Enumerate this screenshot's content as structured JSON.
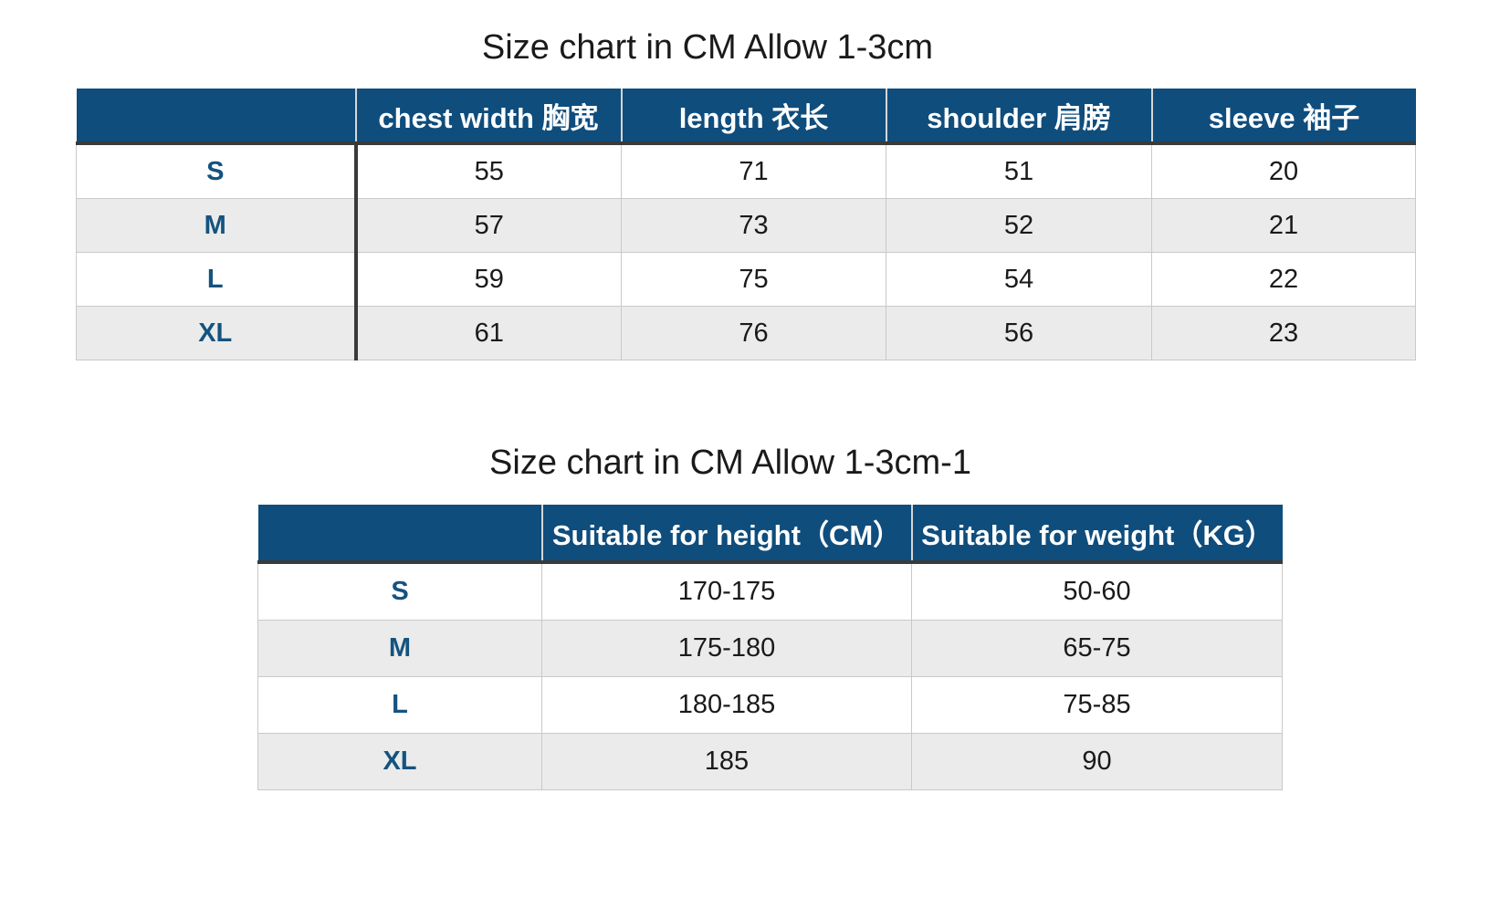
{
  "colors": {
    "header_background": "#0f4d7d",
    "header_text": "#ffffff",
    "size_label_text": "#14537f",
    "stripe_row": "#ebebeb",
    "light_grid_line": "#c9c9c9",
    "dark_rule_line": "#3a3a3a",
    "body_text": "#1a1a1a"
  },
  "chart_data": [
    {
      "type": "table",
      "title": "Size chart in CM Allow 1-3cm",
      "columns": [
        "",
        "chest width 胸宽",
        "length 衣长",
        "shoulder 肩膀",
        "sleeve 袖子"
      ],
      "rows": [
        {
          "size": "S",
          "values": [
            "55",
            "71",
            "51",
            "20"
          ]
        },
        {
          "size": "M",
          "values": [
            "57",
            "73",
            "52",
            "21"
          ]
        },
        {
          "size": "L",
          "values": [
            "59",
            "75",
            "54",
            "22"
          ]
        },
        {
          "size": "XL",
          "values": [
            "61",
            "76",
            "56",
            "23"
          ]
        }
      ],
      "layout_hints": {
        "stripe": "even rows gray",
        "first_column_divider": "dark",
        "header": "navy with white bold text"
      }
    },
    {
      "type": "table",
      "title": "Size chart in CM Allow 1-3cm-1",
      "columns": [
        "",
        "Suitable for height（CM）",
        "Suitable for weight（KG）"
      ],
      "rows": [
        {
          "size": "S",
          "values": [
            "170-175",
            "50-60"
          ]
        },
        {
          "size": "M",
          "values": [
            "175-180",
            "65-75"
          ]
        },
        {
          "size": "L",
          "values": [
            "180-185",
            "75-85"
          ]
        },
        {
          "size": "XL",
          "values": [
            "185",
            "90"
          ]
        }
      ],
      "layout_hints": {
        "stripe": "even rows gray",
        "header": "navy with white bold text"
      }
    }
  ]
}
